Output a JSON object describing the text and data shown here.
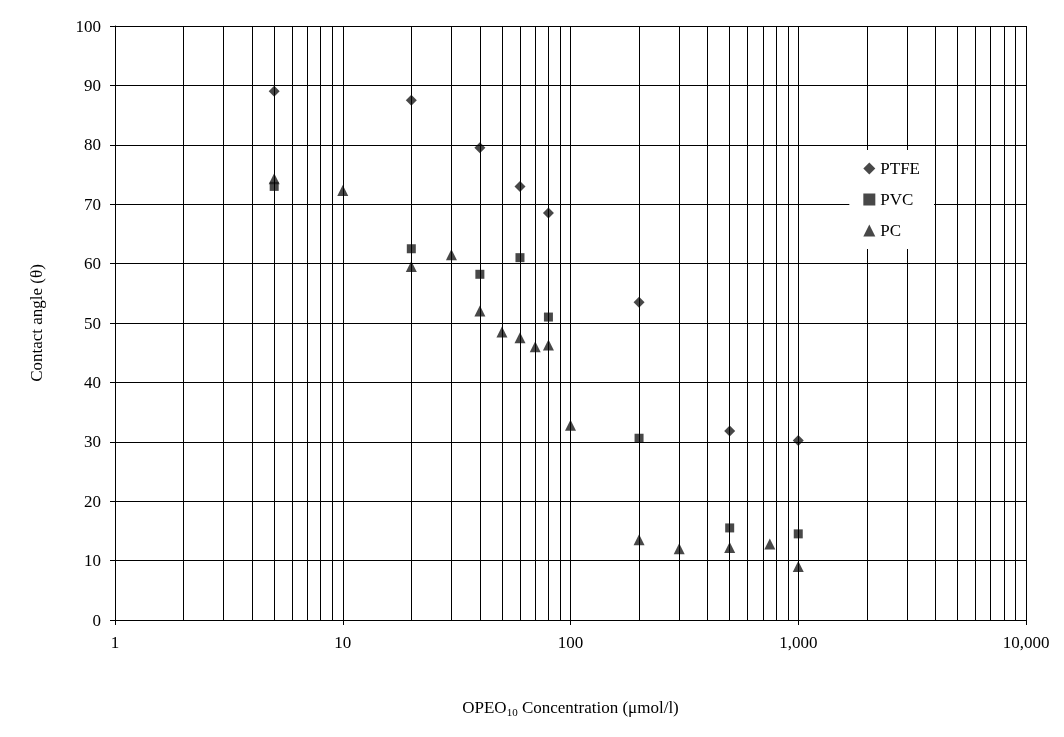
{
  "chart_data": {
    "type": "scatter",
    "xlabel": "OPEO$_{10}$ Concentration (μmol/l)",
    "ylabel": "Contact angle (θ)",
    "log": "x",
    "grid": true,
    "legend": "top right",
    "xlim": [
      1,
      10000
    ],
    "xticks": [
      1,
      10,
      100,
      {
        "value": 1000,
        "label": "1,000"
      },
      {
        "value": 10000,
        "label": "10,000"
      }
    ],
    "ylim": [
      0,
      100
    ],
    "yticks": [
      0,
      10,
      20,
      30,
      40,
      50,
      60,
      70,
      80,
      90,
      100
    ],
    "series": [
      {
        "name": "PTFE",
        "color": "#1a1a1a",
        "marker": "diamond",
        "x": [
          5,
          20,
          40,
          60,
          80,
          200,
          500,
          1000
        ],
        "values": [
          89,
          87.5,
          79.5,
          73,
          68.5,
          53.5,
          31.8,
          30.2
        ]
      },
      {
        "name": "PVC",
        "color": "#1a1a1a",
        "marker": "square",
        "x": [
          5,
          20,
          40,
          60,
          80,
          200,
          500,
          1000
        ],
        "values": [
          73,
          62.5,
          58.2,
          61,
          51,
          30.6,
          15.5,
          14.5
        ]
      },
      {
        "name": "PC",
        "color": "#1a1a1a",
        "marker": "triangle",
        "x": [
          5,
          10,
          20,
          30,
          40,
          50,
          60,
          70,
          80,
          100,
          200,
          300,
          500,
          750,
          1000
        ],
        "values": [
          74.3,
          72.3,
          59.5,
          61.5,
          52,
          48.5,
          47.5,
          46,
          46.3,
          32.8,
          13.5,
          12,
          12.2,
          12.8,
          9
        ]
      }
    ]
  }
}
